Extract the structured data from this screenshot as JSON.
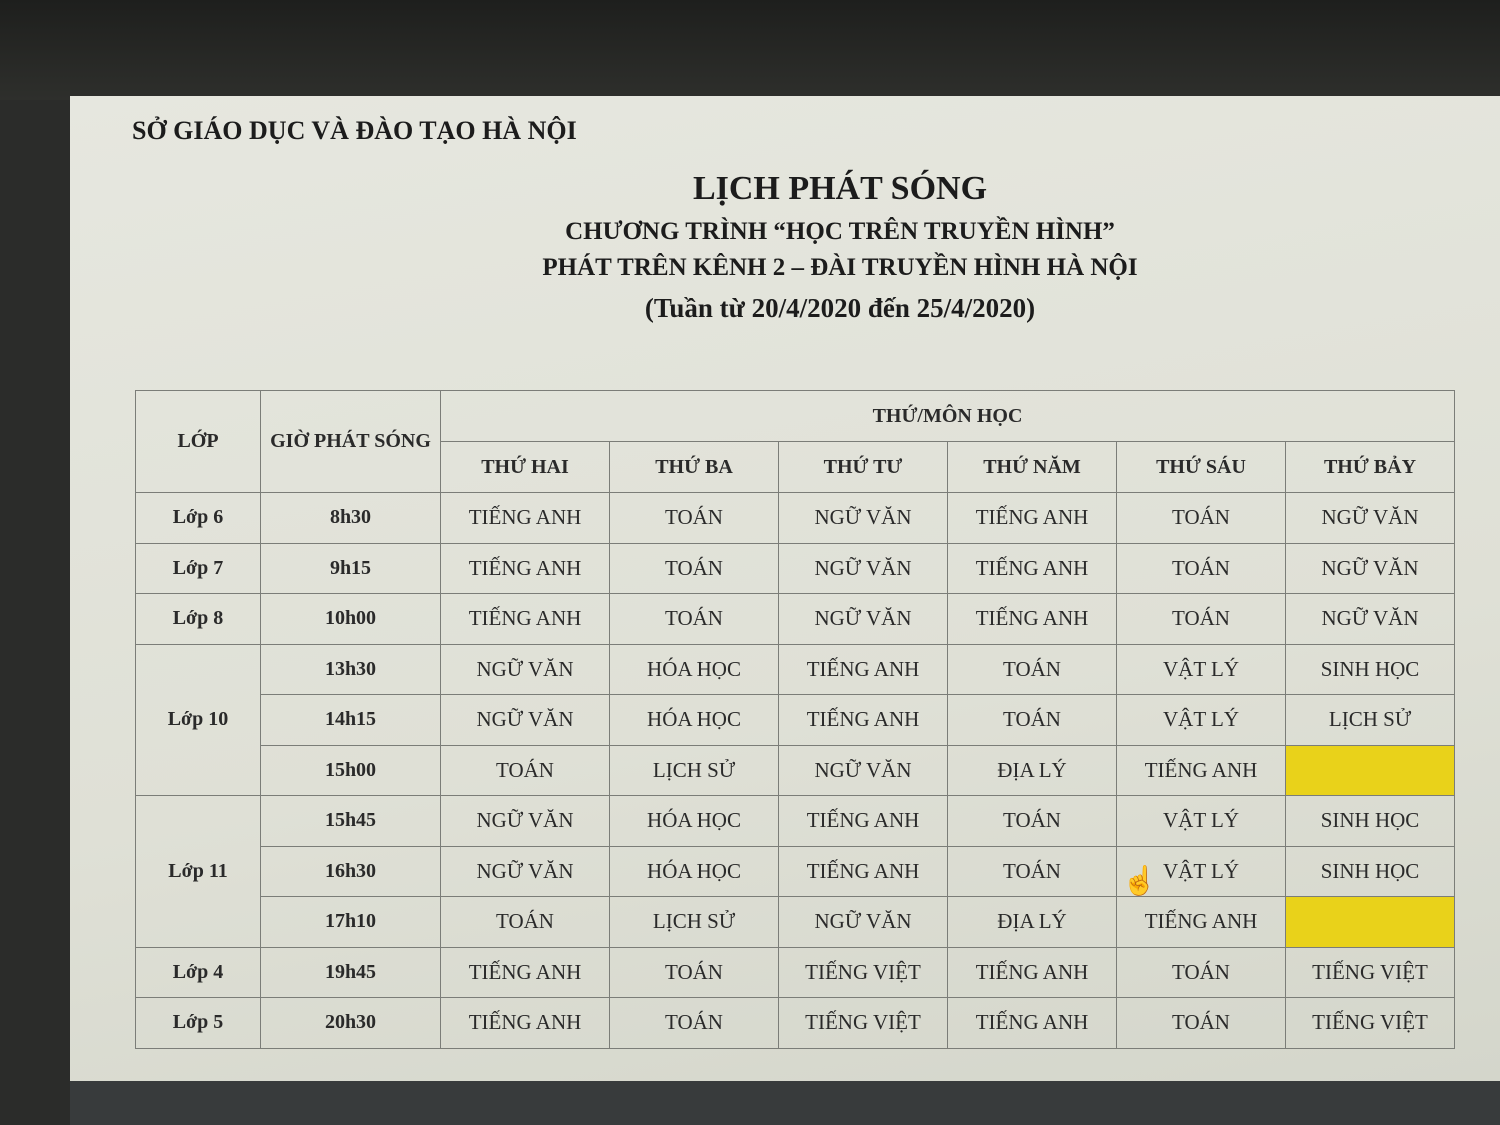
{
  "document": {
    "organization": "SỞ GIÁO DỤC VÀ ĐÀO TẠO HÀ NỘI",
    "title": "LỊCH PHÁT SÓNG",
    "subtitle_1": "CHƯƠNG TRÌNH “HỌC TRÊN TRUYỀN HÌNH”",
    "subtitle_2": "PHÁT TRÊN KÊNH 2 – ĐÀI TRUYỀN HÌNH HÀ NỘI",
    "week": "(Tuần từ 20/4/2020 đến 25/4/2020)"
  },
  "table": {
    "headers": {
      "class": "LỚP",
      "time": "GIỜ PHÁT SÓNG",
      "group": "THỨ/MÔN HỌC",
      "days": [
        "THỨ HAI",
        "THỨ BA",
        "THỨ TƯ",
        "THỨ NĂM",
        "THỨ SÁU",
        "THỨ BẢY"
      ]
    },
    "highlight_color": "#e9d21a",
    "groups": [
      {
        "class": "Lớp 6",
        "rows": [
          {
            "time": "8h30",
            "subjects": [
              "TIẾNG ANH",
              "TOÁN",
              "NGỮ VĂN",
              "TIẾNG ANH",
              "TOÁN",
              "NGỮ VĂN"
            ]
          }
        ]
      },
      {
        "class": "Lớp 7",
        "rows": [
          {
            "time": "9h15",
            "subjects": [
              "TIẾNG ANH",
              "TOÁN",
              "NGỮ VĂN",
              "TIẾNG ANH",
              "TOÁN",
              "NGỮ VĂN"
            ]
          }
        ]
      },
      {
        "class": "Lớp 8",
        "rows": [
          {
            "time": "10h00",
            "subjects": [
              "TIẾNG ANH",
              "TOÁN",
              "NGỮ VĂN",
              "TIẾNG ANH",
              "TOÁN",
              "NGỮ VĂN"
            ]
          }
        ]
      },
      {
        "class": "Lớp 10",
        "rows": [
          {
            "time": "13h30",
            "subjects": [
              "NGỮ VĂN",
              "HÓA HỌC",
              "TIẾNG ANH",
              "TOÁN",
              "VẬT LÝ",
              "SINH HỌC"
            ]
          },
          {
            "time": "14h15",
            "subjects": [
              "NGỮ VĂN",
              "HÓA HỌC",
              "TIẾNG ANH",
              "TOÁN",
              "VẬT LÝ",
              "LỊCH SỬ"
            ]
          },
          {
            "time": "15h00",
            "subjects": [
              "TOÁN",
              "LỊCH SỬ",
              "NGỮ VĂN",
              "ĐỊA LÝ",
              "TIẾNG ANH",
              ""
            ],
            "highlighted": [
              5
            ]
          }
        ]
      },
      {
        "class": "Lớp 11",
        "rows": [
          {
            "time": "15h45",
            "subjects": [
              "NGỮ VĂN",
              "HÓA HỌC",
              "TIẾNG ANH",
              "TOÁN",
              "VẬT LÝ",
              "SINH HỌC"
            ]
          },
          {
            "time": "16h30",
            "subjects": [
              "NGỮ VĂN",
              "HÓA HỌC",
              "TIẾNG ANH",
              "TOÁN",
              "VẬT LÝ",
              "SINH HỌC"
            ]
          },
          {
            "time": "17h10",
            "subjects": [
              "TOÁN",
              "LỊCH SỬ",
              "NGỮ VĂN",
              "ĐỊA LÝ",
              "TIẾNG ANH",
              ""
            ],
            "highlighted": [
              5
            ]
          }
        ]
      },
      {
        "class": "Lớp 4",
        "rows": [
          {
            "time": "19h45",
            "subjects": [
              "TIẾNG ANH",
              "TOÁN",
              "TIẾNG VIỆT",
              "TIẾNG ANH",
              "TOÁN",
              "TIẾNG VIỆT"
            ]
          }
        ]
      },
      {
        "class": "Lớp 5",
        "rows": [
          {
            "time": "20h30",
            "subjects": [
              "TIẾNG ANH",
              "TOÁN",
              "TIẾNG VIỆT",
              "TIẾNG ANH",
              "TOÁN",
              "TIẾNG VIỆT"
            ]
          }
        ]
      }
    ]
  },
  "cursor_icon": "hand-pointer-icon"
}
